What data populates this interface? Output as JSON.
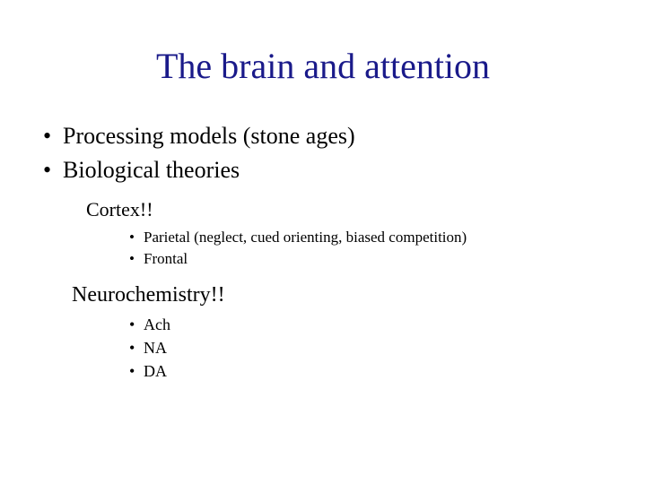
{
  "title": "The brain and attention",
  "title_color": "#1a1a8a",
  "text_color": "#000000",
  "background_color": "#ffffff",
  "font_family": "Times New Roman",
  "bullets": {
    "level1": [
      "Processing models (stone ages)",
      "Biological theories"
    ],
    "sub1_heading": "Cortex!!",
    "sub1_items": [
      "Parietal (neglect, cued orienting, biased competition)",
      "Frontal"
    ],
    "sub2_heading": "Neurochemistry!!",
    "sub2_items": [
      "Ach",
      "NA",
      "DA"
    ]
  },
  "font_sizes": {
    "title": 40,
    "level1": 26,
    "sub_heading": 22,
    "level3": 17,
    "sub_heading2": 24,
    "level3b": 18
  }
}
